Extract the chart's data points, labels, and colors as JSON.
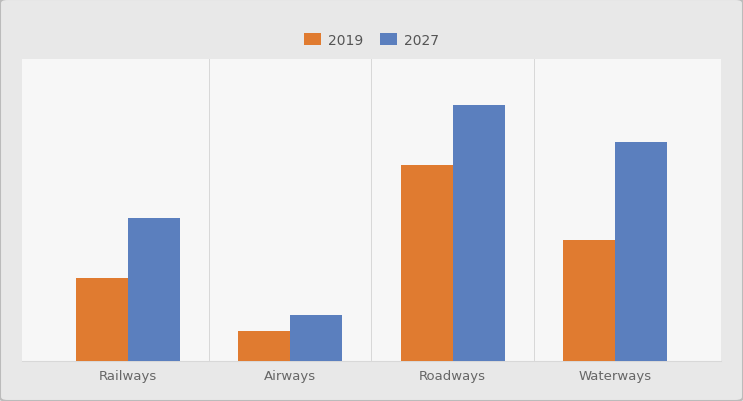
{
  "categories": [
    "Railways",
    "Airways",
    "Roadways",
    "Waterways"
  ],
  "values_2019": [
    22,
    8,
    52,
    32
  ],
  "values_2027": [
    38,
    12,
    68,
    58
  ],
  "color_2019": "#E07B30",
  "color_2027": "#5B7FBE",
  "legend_labels": [
    "2019",
    "2027"
  ],
  "bar_width": 0.32,
  "ylim": [
    0,
    80
  ],
  "background_color": "#F0F0F0",
  "plot_bg_color": "#F7F7F7",
  "grid_color": "#D8D8D8",
  "tick_label_fontsize": 9.5,
  "legend_fontsize": 10,
  "outer_bg": "#E8E8E8"
}
